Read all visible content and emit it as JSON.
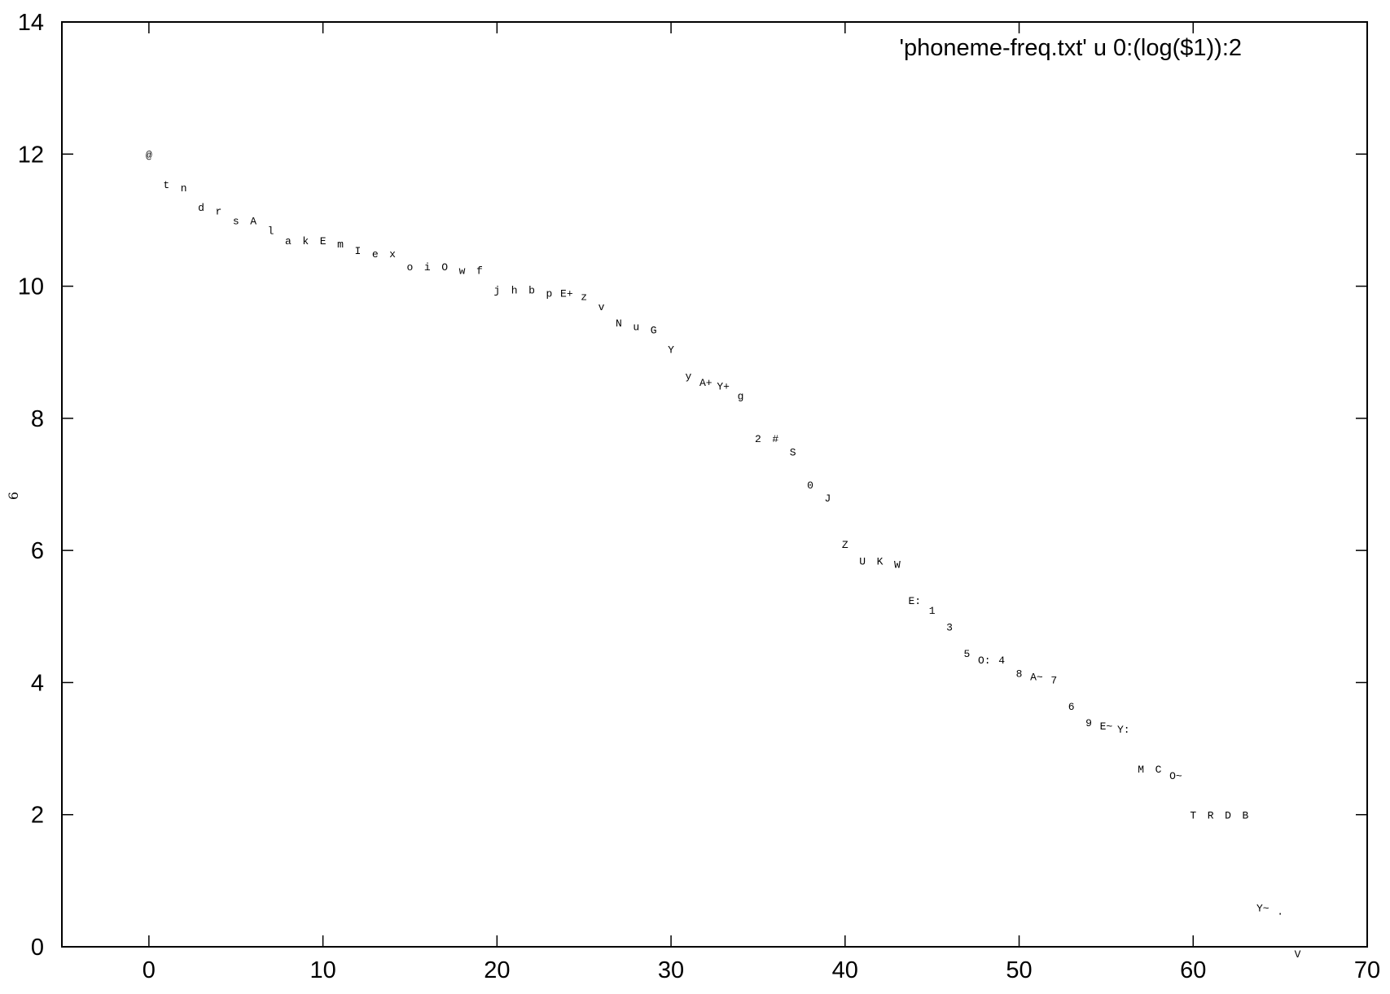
{
  "chart_data": {
    "type": "scatter",
    "title": "",
    "xlabel": "",
    "ylabel": "6",
    "xlim": [
      -5,
      70
    ],
    "ylim": [
      0,
      14
    ],
    "x_ticks": [
      "0",
      "10",
      "20",
      "30",
      "40",
      "50",
      "60",
      "70"
    ],
    "y_ticks": [
      "0",
      "2",
      "4",
      "6",
      "8",
      "10",
      "12",
      "14"
    ],
    "grid": false,
    "legend": "top-right",
    "series": [
      {
        "name": "'phoneme-freq.txt' u 0:(log($1)):2",
        "points": [
          {
            "x": 0,
            "y": 12.0,
            "label": "@"
          },
          {
            "x": 1,
            "y": 11.55,
            "label": "t"
          },
          {
            "x": 2,
            "y": 11.5,
            "label": "n"
          },
          {
            "x": 3,
            "y": 11.2,
            "label": "d"
          },
          {
            "x": 4,
            "y": 11.15,
            "label": "r"
          },
          {
            "x": 5,
            "y": 11.0,
            "label": "s"
          },
          {
            "x": 6,
            "y": 11.0,
            "label": "A"
          },
          {
            "x": 7,
            "y": 10.85,
            "label": "l"
          },
          {
            "x": 8,
            "y": 10.7,
            "label": "a"
          },
          {
            "x": 9,
            "y": 10.7,
            "label": "k"
          },
          {
            "x": 10,
            "y": 10.7,
            "label": "E"
          },
          {
            "x": 11,
            "y": 10.65,
            "label": "m"
          },
          {
            "x": 12,
            "y": 10.55,
            "label": "I"
          },
          {
            "x": 13,
            "y": 10.5,
            "label": "e"
          },
          {
            "x": 14,
            "y": 10.5,
            "label": "x"
          },
          {
            "x": 15,
            "y": 10.3,
            "label": "o"
          },
          {
            "x": 16,
            "y": 10.3,
            "label": "i"
          },
          {
            "x": 17,
            "y": 10.3,
            "label": "O"
          },
          {
            "x": 18,
            "y": 10.25,
            "label": "w"
          },
          {
            "x": 19,
            "y": 10.25,
            "label": "f"
          },
          {
            "x": 20,
            "y": 9.95,
            "label": "j"
          },
          {
            "x": 21,
            "y": 9.95,
            "label": "h"
          },
          {
            "x": 22,
            "y": 9.95,
            "label": "b"
          },
          {
            "x": 23,
            "y": 9.9,
            "label": "p"
          },
          {
            "x": 24,
            "y": 9.9,
            "label": "E+"
          },
          {
            "x": 25,
            "y": 9.85,
            "label": "z"
          },
          {
            "x": 26,
            "y": 9.7,
            "label": "v"
          },
          {
            "x": 27,
            "y": 9.45,
            "label": "N"
          },
          {
            "x": 28,
            "y": 9.4,
            "label": "u"
          },
          {
            "x": 29,
            "y": 9.35,
            "label": "G"
          },
          {
            "x": 30,
            "y": 9.05,
            "label": "Y"
          },
          {
            "x": 31,
            "y": 8.65,
            "label": "y"
          },
          {
            "x": 32,
            "y": 8.55,
            "label": "A+"
          },
          {
            "x": 33,
            "y": 8.5,
            "label": "Y+"
          },
          {
            "x": 34,
            "y": 8.35,
            "label": "g"
          },
          {
            "x": 35,
            "y": 7.7,
            "label": "2"
          },
          {
            "x": 36,
            "y": 7.7,
            "label": "#"
          },
          {
            "x": 37,
            "y": 7.5,
            "label": "S"
          },
          {
            "x": 38,
            "y": 7.0,
            "label": "0"
          },
          {
            "x": 39,
            "y": 6.8,
            "label": "J"
          },
          {
            "x": 40,
            "y": 6.1,
            "label": "Z"
          },
          {
            "x": 41,
            "y": 5.85,
            "label": "U"
          },
          {
            "x": 42,
            "y": 5.85,
            "label": "K"
          },
          {
            "x": 43,
            "y": 5.8,
            "label": "W"
          },
          {
            "x": 44,
            "y": 5.25,
            "label": "E:"
          },
          {
            "x": 45,
            "y": 5.1,
            "label": "1"
          },
          {
            "x": 46,
            "y": 4.85,
            "label": "3"
          },
          {
            "x": 47,
            "y": 4.45,
            "label": "5"
          },
          {
            "x": 48,
            "y": 4.35,
            "label": "O:"
          },
          {
            "x": 49,
            "y": 4.35,
            "label": "4"
          },
          {
            "x": 50,
            "y": 4.15,
            "label": "8"
          },
          {
            "x": 51,
            "y": 4.1,
            "label": "A~"
          },
          {
            "x": 52,
            "y": 4.05,
            "label": "7"
          },
          {
            "x": 53,
            "y": 3.65,
            "label": "6"
          },
          {
            "x": 54,
            "y": 3.4,
            "label": "9"
          },
          {
            "x": 55,
            "y": 3.35,
            "label": "E~"
          },
          {
            "x": 56,
            "y": 3.3,
            "label": "Y:"
          },
          {
            "x": 57,
            "y": 2.7,
            "label": "M"
          },
          {
            "x": 58,
            "y": 2.7,
            "label": "C"
          },
          {
            "x": 59,
            "y": 2.6,
            "label": "O~"
          },
          {
            "x": 60,
            "y": 2.0,
            "label": "T"
          },
          {
            "x": 61,
            "y": 2.0,
            "label": "R"
          },
          {
            "x": 62,
            "y": 2.0,
            "label": "D"
          },
          {
            "x": 63,
            "y": 2.0,
            "label": "B"
          },
          {
            "x": 64,
            "y": 0.6,
            "label": "Y~"
          },
          {
            "x": 65,
            "y": 0.55,
            "label": "."
          },
          {
            "x": 66,
            "y": -0.1,
            "label": "V"
          }
        ]
      }
    ]
  }
}
